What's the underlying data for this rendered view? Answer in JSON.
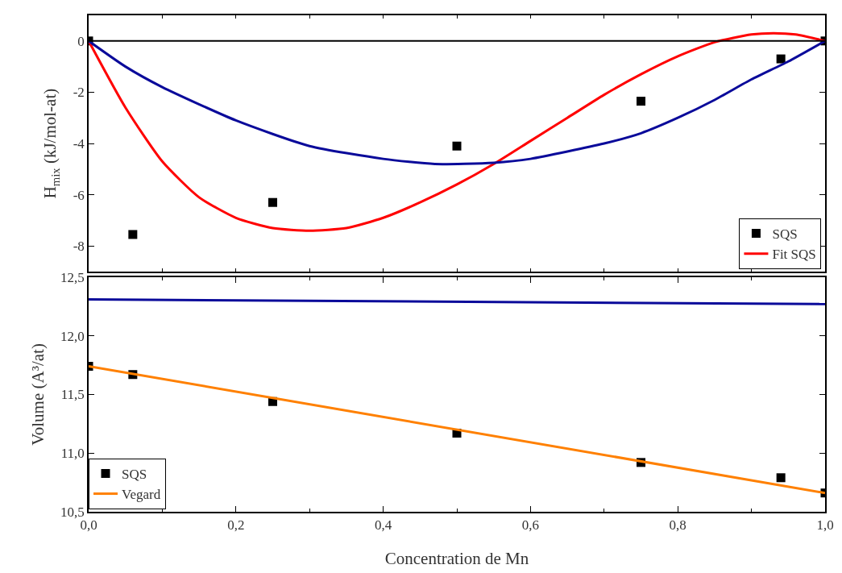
{
  "chart_data": [
    {
      "type": "scatter",
      "ylabel": "H$_{mix}$ (kJ/mol-at)",
      "xlim": [
        0,
        1
      ],
      "ylim": [
        -9,
        1
      ],
      "xticks": [
        {
          "value": 0,
          "label": null
        },
        {
          "value": 0.2,
          "label": null
        },
        {
          "value": 0.4,
          "label": null
        },
        {
          "value": 0.6,
          "label": null
        },
        {
          "value": 0.8,
          "label": null
        },
        {
          "value": 1,
          "label": null
        }
      ],
      "yticks": [
        -8,
        -6,
        -4,
        -2,
        0
      ],
      "tick_labels": "y",
      "legend": "bottom right",
      "ref_lines": [
        {
          "axis": "y",
          "value": 0,
          "color": "#000000"
        }
      ],
      "series": [
        {
          "name": "SQS",
          "marker": "square",
          "color": "#000000",
          "x": [
            0,
            0.06,
            0.25,
            0.5,
            0.75,
            0.94,
            1
          ],
          "values": [
            0,
            -7.55,
            -6.3,
            -4.1,
            -2.35,
            -0.7,
            0
          ]
        },
        {
          "name": "Fit SQS",
          "type": "line",
          "color": "#ff0000",
          "x": [
            0,
            0.05,
            0.1,
            0.15,
            0.2,
            0.25,
            0.3,
            0.35,
            0.4,
            0.45,
            0.5,
            0.55,
            0.6,
            0.65,
            0.7,
            0.75,
            0.8,
            0.85,
            0.9,
            0.93,
            0.96,
            1
          ],
          "values": [
            0,
            -2.6,
            -4.7,
            -6.1,
            -6.9,
            -7.3,
            -7.4,
            -7.3,
            -6.9,
            -6.3,
            -5.6,
            -4.8,
            -3.9,
            -3.0,
            -2.1,
            -1.3,
            -0.6,
            -0.05,
            0.25,
            0.3,
            0.25,
            0
          ]
        },
        {
          "type": "line",
          "color": "#0a0a9a",
          "x": [
            0,
            0.05,
            0.1,
            0.2,
            0.3,
            0.4,
            0.47,
            0.55,
            0.6,
            0.7,
            0.75,
            0.8,
            0.85,
            0.9,
            0.95,
            1
          ],
          "values": [
            0,
            -1.0,
            -1.8,
            -3.1,
            -4.1,
            -4.6,
            -4.8,
            -4.75,
            -4.6,
            -4.0,
            -3.6,
            -3.0,
            -2.3,
            -1.5,
            -0.8,
            0
          ]
        }
      ]
    },
    {
      "type": "scatter",
      "xlabel": "Concentration de Mn",
      "ylabel": "Volume (A³/at)",
      "xlim": [
        0,
        1
      ],
      "ylim": [
        10.5,
        12.5
      ],
      "xticks": [
        {
          "value": 0,
          "label": "0,0"
        },
        {
          "value": 0.2,
          "label": "0,2"
        },
        {
          "value": 0.4,
          "label": "0,4"
        },
        {
          "value": 0.6,
          "label": "0,6"
        },
        {
          "value": 0.8,
          "label": "0,8"
        },
        {
          "value": 1,
          "label": "1,0"
        }
      ],
      "yticks": [
        {
          "value": 10.5,
          "label": "10,5"
        },
        {
          "value": 11,
          "label": "11,0"
        },
        {
          "value": 11.5,
          "label": "11,5"
        },
        {
          "value": 12,
          "label": "12,0"
        },
        {
          "value": 12.5,
          "label": "12,5"
        }
      ],
      "legend": "bottom left",
      "series": [
        {
          "name": "SQS",
          "marker": "square",
          "color": "#000000",
          "x": [
            0,
            0.06,
            0.25,
            0.5,
            0.75,
            0.94,
            1
          ],
          "values": [
            11.74,
            11.67,
            11.44,
            11.17,
            10.92,
            10.79,
            10.66
          ]
        },
        {
          "name": "Vegard",
          "type": "line",
          "color": "#ff8000",
          "x": [
            0,
            1
          ],
          "values": [
            11.74,
            10.66
          ]
        },
        {
          "type": "line",
          "color": "#0a0a9a",
          "x": [
            0,
            1
          ],
          "values": [
            12.31,
            12.27
          ]
        }
      ]
    }
  ]
}
